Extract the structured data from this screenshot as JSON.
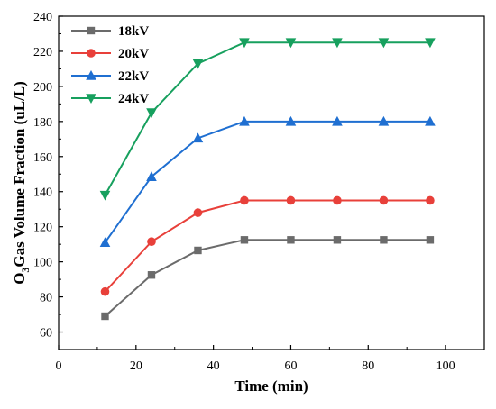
{
  "chart_data": {
    "type": "line",
    "title": "",
    "xlabel": "Time (min)",
    "ylabel_sub": "3",
    "ylabel_parts": [
      "O",
      "Gas Volume Fraction (uL/L)"
    ],
    "xlim": [
      0,
      110
    ],
    "ylim": [
      50,
      240
    ],
    "x_ticks": [
      "0",
      "20",
      "40",
      "60",
      "80",
      "100"
    ],
    "y_ticks": [
      "60",
      "80",
      "100",
      "120",
      "140",
      "160",
      "180",
      "200",
      "220",
      "240"
    ],
    "x": [
      12,
      24,
      36,
      48,
      60,
      72,
      84,
      96
    ],
    "legend_position": "top-left",
    "series": [
      {
        "name": "18kV",
        "color": "#6b6b6b",
        "marker": "square",
        "values": [
          69,
          92.5,
          106.5,
          112.5,
          112.5,
          112.5,
          112.5,
          112.5
        ]
      },
      {
        "name": "20kV",
        "color": "#e8403a",
        "marker": "circle",
        "values": [
          83,
          111.5,
          128,
          135,
          135,
          135,
          135,
          135
        ]
      },
      {
        "name": "22kV",
        "color": "#1f6fd1",
        "marker": "triangle-up",
        "values": [
          111,
          148.5,
          170.5,
          180,
          180,
          180,
          180,
          180
        ]
      },
      {
        "name": "24kV",
        "color": "#17a05e",
        "marker": "triangle-down",
        "values": [
          138,
          185,
          213,
          225,
          225,
          225,
          225,
          225
        ]
      }
    ]
  }
}
